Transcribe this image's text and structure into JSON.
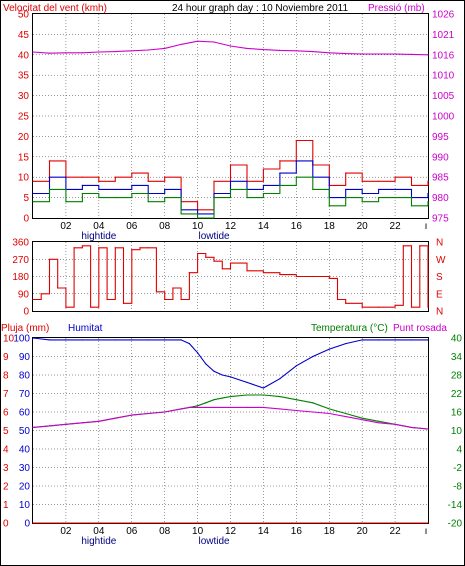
{
  "title": "24 hour graph day : 10 Noviembre 2011",
  "colors": {
    "red": "#e00000",
    "magenta": "#cc00cc",
    "blue": "#0000cc",
    "green": "#008000",
    "navy": "#000080",
    "grid": "#000000",
    "frame": "#000000"
  },
  "x_axis": {
    "ticks": [
      "02",
      "04",
      "06",
      "08",
      "10",
      "12",
      "14",
      "16",
      "18",
      "20",
      "22"
    ],
    "tide_labels": [
      {
        "text": "hightide",
        "at_hour": 4
      },
      {
        "text": "lowtide",
        "at_hour": 11
      }
    ]
  },
  "chart_data": [
    {
      "type": "line",
      "panel": "wind_pressure",
      "left_label": "Velocitat del vent (kmh)",
      "right_label": "Pressió (mb)",
      "left_ticks": [
        "0",
        "5",
        "10",
        "15",
        "20",
        "25",
        "30",
        "35",
        "40",
        "45",
        "50"
      ],
      "right_ticks": [
        "975",
        "980",
        "985",
        "990",
        "995",
        "1000",
        "1005",
        "1010",
        "1016",
        "1021",
        "1026"
      ],
      "ylim_left": [
        0,
        50
      ],
      "ylim_right": [
        975,
        1026
      ],
      "x": [
        0,
        1,
        2,
        3,
        4,
        5,
        6,
        7,
        8,
        9,
        10,
        11,
        12,
        13,
        14,
        15,
        16,
        17,
        18,
        19,
        20,
        21,
        22,
        23,
        24
      ],
      "series": [
        {
          "key": "gust",
          "color": "red",
          "values": [
            9,
            14,
            10,
            10,
            9,
            10,
            11,
            9,
            10,
            4,
            2,
            9,
            13,
            9,
            12,
            14,
            19,
            13,
            8,
            11,
            9,
            9,
            10,
            8,
            9
          ]
        },
        {
          "key": "wind_avg",
          "color": "blue",
          "values": [
            6,
            10,
            7,
            8,
            7,
            7,
            8,
            6,
            7,
            2,
            1,
            6,
            9,
            7,
            8,
            11,
            14,
            10,
            5,
            7,
            6,
            7,
            7,
            5,
            6
          ]
        },
        {
          "key": "wind",
          "color": "green",
          "values": [
            4,
            7,
            4,
            6,
            5,
            5,
            6,
            4,
            5,
            1,
            0,
            5,
            7,
            5,
            6,
            8,
            10,
            7,
            3,
            5,
            4,
            5,
            5,
            3,
            4
          ]
        },
        {
          "key": "pressure",
          "color": "magenta",
          "values": [
            1016.5,
            1016.2,
            1016.3,
            1016.3,
            1016.5,
            1016.6,
            1016.8,
            1017.0,
            1017.4,
            1018.4,
            1019.2,
            1019.0,
            1018.0,
            1017.4,
            1017.1,
            1016.9,
            1016.8,
            1016.6,
            1016.3,
            1016.1,
            1016.0,
            1016.0,
            1016.0,
            1015.9,
            1015.8
          ]
        }
      ]
    },
    {
      "type": "line",
      "panel": "wind_direction",
      "left_ticks": [
        "0",
        "90",
        "180",
        "270",
        "360"
      ],
      "right_ticks": [
        "N",
        "E",
        "S",
        "W",
        "N"
      ],
      "ylim": [
        0,
        360
      ],
      "x": [
        0,
        0.5,
        1,
        1.5,
        2,
        2.5,
        3,
        3.5,
        4,
        4.5,
        5,
        5.5,
        6,
        6.5,
        7,
        7.5,
        8,
        8.5,
        9,
        9.5,
        10,
        10.5,
        11,
        11.5,
        12,
        13,
        14,
        15,
        16,
        17,
        18,
        18.5,
        19,
        20,
        21,
        22,
        22.5,
        23,
        23.5,
        24
      ],
      "series": [
        {
          "key": "direction",
          "color": "red",
          "values": [
            60,
            90,
            270,
            120,
            20,
            330,
            340,
            20,
            330,
            60,
            330,
            40,
            320,
            330,
            330,
            100,
            60,
            120,
            60,
            200,
            300,
            280,
            260,
            220,
            250,
            210,
            200,
            190,
            180,
            180,
            170,
            60,
            40,
            20,
            20,
            30,
            340,
            20,
            340,
            20
          ]
        }
      ]
    },
    {
      "type": "line",
      "panel": "rain_humidity_temp",
      "left_label": "Pluja (mm)",
      "left_label_2": "Humitat",
      "right_label": "Temperatura (°C)",
      "right_label_2": "Punt rosada",
      "left_ticks_rain": [
        "0",
        "1",
        "2",
        "3",
        "4",
        "5",
        "6",
        "7",
        "8",
        "9",
        "10"
      ],
      "left_ticks_hum": [
        "0",
        "10",
        "20",
        "30",
        "40",
        "50",
        "60",
        "70",
        "80",
        "90",
        "100"
      ],
      "right_ticks": [
        "-20",
        "-14",
        "-8",
        "-2",
        "4",
        "10",
        "16",
        "22",
        "28",
        "34",
        "40"
      ],
      "ylim_left": [
        0,
        100
      ],
      "ylim_right": [
        -20,
        40
      ],
      "x": [
        0,
        1,
        2,
        3,
        4,
        5,
        6,
        7,
        8,
        9,
        9.5,
        10,
        10.5,
        11,
        11.5,
        12,
        13,
        14,
        15,
        16,
        17,
        18,
        19,
        20,
        21,
        22,
        23,
        24
      ],
      "series": [
        {
          "key": "humidity",
          "color": "blue",
          "values": [
            100,
            99,
            99,
            99,
            99,
            99,
            99,
            99,
            99,
            99,
            97,
            92,
            86,
            82,
            80,
            79,
            76,
            73,
            78,
            85,
            90,
            94,
            97,
            99,
            99,
            99,
            99,
            99
          ]
        },
        {
          "key": "temperature",
          "color": "green",
          "values": [
            11,
            11.5,
            12,
            12.5,
            13,
            14,
            15,
            15.5,
            16,
            17,
            17.5,
            18,
            19,
            20,
            20.5,
            21,
            21.5,
            21.5,
            21,
            20,
            19,
            17,
            15.5,
            14,
            13,
            12,
            11,
            10.5
          ]
        },
        {
          "key": "dew_point",
          "color": "magenta",
          "values": [
            11,
            11.5,
            12,
            12.5,
            13,
            14,
            15,
            15.5,
            16,
            17,
            17.5,
            17.5,
            17.5,
            17.5,
            17.5,
            17.5,
            17.5,
            17.5,
            17,
            16.5,
            16,
            15.5,
            14.5,
            13.5,
            12.5,
            12,
            11,
            10.5
          ]
        },
        {
          "key": "rain",
          "color": "red",
          "values": [
            0,
            0,
            0,
            0,
            0,
            0,
            0,
            0,
            0,
            0,
            0,
            0,
            0,
            0,
            0,
            0,
            0,
            0,
            0,
            0,
            0,
            0,
            0,
            0,
            0,
            0,
            0,
            0
          ]
        }
      ]
    }
  ]
}
